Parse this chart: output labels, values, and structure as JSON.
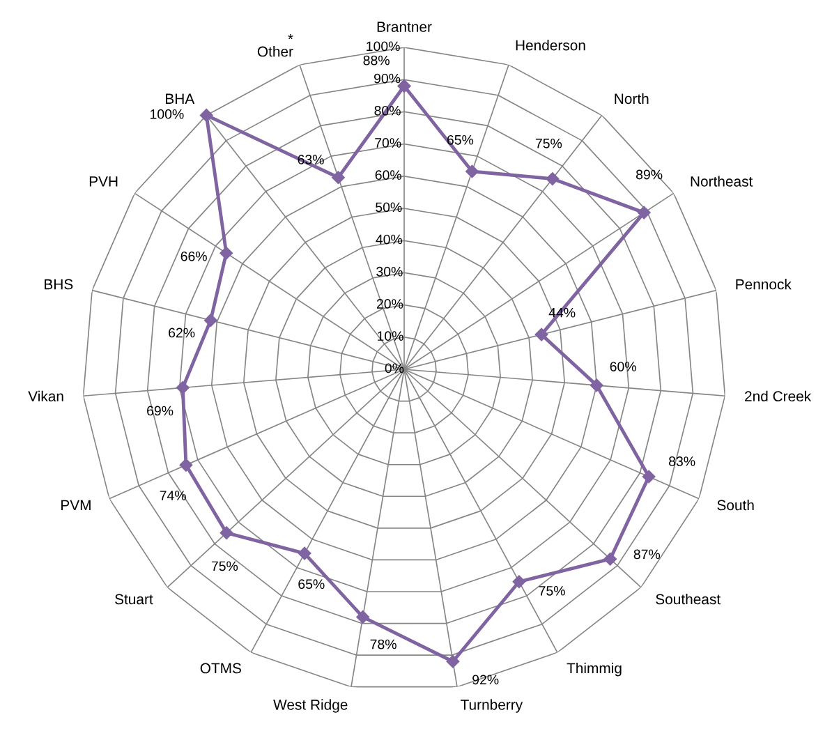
{
  "chart_data": {
    "type": "radar",
    "categories": [
      "Brantner",
      "Henderson",
      "North",
      "Northeast",
      "Pennock",
      "2nd Creek",
      "South",
      "Southeast",
      "Thimmig",
      "Turnberry",
      "West Ridge",
      "OTMS",
      "Stuart",
      "PVM",
      "Vikan",
      "BHS",
      "PVH",
      "BHA",
      "*\nOther"
    ],
    "series": [
      {
        "color": "#8064a2",
        "values": [
          88,
          65,
          75,
          89,
          44,
          60,
          83,
          87,
          75,
          92,
          78,
          65,
          75,
          74,
          69,
          62,
          66,
          100,
          63
        ],
        "value_labels": [
          "88%",
          "65%",
          "75%",
          "89%",
          "44%",
          "60%",
          "83%",
          "87%",
          "75%",
          "92%",
          "78%",
          "65%",
          "75%",
          "74%",
          "69%",
          "62%",
          "66%",
          "100%",
          "63%"
        ]
      }
    ],
    "ylim": [
      0,
      100
    ],
    "yticks": [
      {
        "value": 0,
        "label": "0%"
      },
      {
        "value": 10,
        "label": "10%"
      },
      {
        "value": 20,
        "label": "20%"
      },
      {
        "value": 30,
        "label": "30%"
      },
      {
        "value": 40,
        "label": "40%"
      },
      {
        "value": 50,
        "label": "50%"
      },
      {
        "value": 60,
        "label": "60%"
      },
      {
        "value": 70,
        "label": "70%"
      },
      {
        "value": 80,
        "label": "80%"
      },
      {
        "value": 90,
        "label": "90%"
      },
      {
        "value": 100,
        "label": "100%"
      }
    ],
    "grid": true,
    "marker": "diamond",
    "line_style": "solid",
    "legend": false
  }
}
